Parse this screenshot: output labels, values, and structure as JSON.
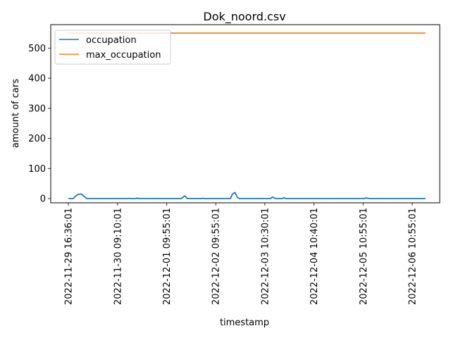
{
  "chart_data": {
    "type": "line",
    "title": "Dok_noord.csv",
    "xlabel": "timestamp",
    "ylabel": "amount of cars",
    "ylim": [
      -14,
      578
    ],
    "yticks": [
      0,
      100,
      200,
      300,
      400,
      500
    ],
    "x_tick_labels": [
      "2022-11-29 16:36:01",
      "2022-11-30 09:10:01",
      "2022-12-01 09:55:01",
      "2022-12-02 09:55:01",
      "2022-12-03 10:30:01",
      "2022-12-04 10:40:01",
      "2022-12-05 10:55:01",
      "2022-12-06 10:55:01"
    ],
    "x_index_range": [
      -0.36,
      7.56
    ],
    "legend_placement": "top-left",
    "grid": false,
    "series": [
      {
        "name": "occupation",
        "color": "#1f77b4",
        "x": [
          0,
          0.1,
          0.12,
          0.16,
          0.2,
          0.24,
          0.28,
          0.31,
          0.34,
          0.37,
          0.42,
          1.2,
          1.23,
          1.26,
          1.38,
          1.4,
          1.42,
          2.3,
          2.33,
          2.36,
          2.39,
          2.42,
          2.7,
          2.73,
          2.76,
          3.3,
          3.33,
          3.36,
          3.39,
          3.41,
          3.44,
          3.48,
          3.52,
          4.12,
          4.15,
          4.18,
          4.22,
          4.36,
          4.39,
          4.42,
          5.85,
          6.02,
          6.05,
          6.15,
          7.27
        ],
        "y": [
          0,
          0,
          5,
          10,
          14,
          15,
          14,
          8,
          5,
          0,
          0,
          0,
          1,
          0,
          0,
          2,
          0,
          0,
          4,
          9,
          6,
          0,
          0,
          1,
          0,
          0,
          12,
          18,
          20,
          14,
          4,
          0,
          0,
          0,
          5,
          3,
          0,
          0,
          3,
          0,
          0,
          0,
          2,
          0,
          0
        ]
      },
      {
        "name": "max_occupation",
        "color": "#ff7f0e",
        "x": [
          0,
          7.27
        ],
        "y": [
          550,
          550
        ]
      }
    ]
  }
}
